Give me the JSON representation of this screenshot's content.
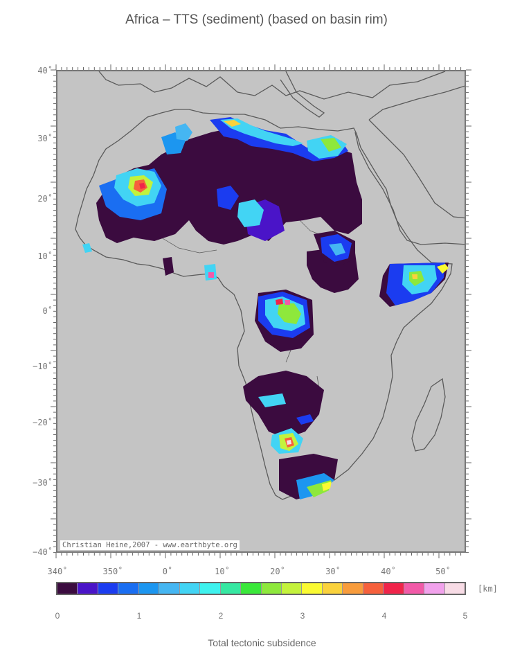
{
  "title": "Africa – TTS (sediment) (based on basin rim)",
  "lat_labels": [
    "40˚",
    "30˚",
    "20˚",
    "10˚",
    "0˚",
    "−10˚",
    "−20˚",
    "−30˚",
    "−40˚"
  ],
  "lon_labels": [
    "340˚",
    "350˚",
    "0˚",
    "10˚",
    "20˚",
    "30˚",
    "40˚",
    "50˚"
  ],
  "credit": "Christian Heine,2007 - www.earthbyte.org",
  "colorbar": {
    "unit": "[km]",
    "tick_labels": [
      "0",
      "1",
      "2",
      "3",
      "4",
      "5"
    ],
    "colors": [
      "#3b0b3f",
      "#4a14c8",
      "#1b3cf0",
      "#1a6ef2",
      "#1c96f0",
      "#45b6f2",
      "#42d4f4",
      "#3ef2ee",
      "#36e8a2",
      "#3ae83a",
      "#8ee83c",
      "#c4f23c",
      "#fafa32",
      "#fad23c",
      "#f89c3c",
      "#f6603c",
      "#f0244a",
      "#f25aa8",
      "#f2a2ec",
      "#f8dce6"
    ]
  },
  "xlabel": "Total tectonic subsidence",
  "map": {
    "land_color": "#c4c4c4",
    "coast_color": "#5a5a5a"
  }
}
